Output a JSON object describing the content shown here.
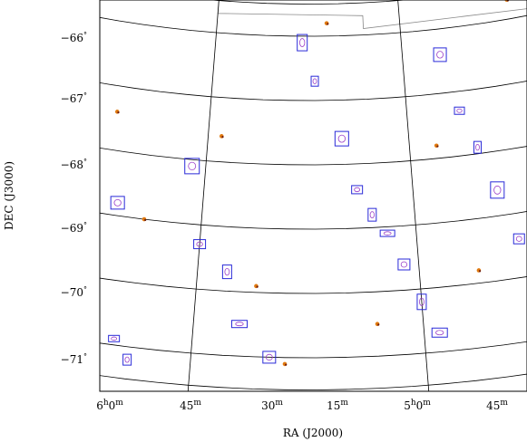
{
  "chart_data": {
    "type": "scatter",
    "title": "",
    "xlabel": "RA (J2000)",
    "ylabel": "DEC (J3000)",
    "x_ticks": [
      {
        "h": "6",
        "m": "0",
        "value": "6h0m"
      },
      {
        "h": "",
        "m": "45",
        "value": "5h45m"
      },
      {
        "h": "",
        "m": "30",
        "value": "5h30m"
      },
      {
        "h": "",
        "m": "15",
        "value": "5h15m"
      },
      {
        "h": "5",
        "m": "0",
        "value": "5h0m"
      },
      {
        "h": "",
        "m": "45",
        "value": "4h45m"
      }
    ],
    "y_ticks": [
      "−66",
      "−67",
      "−68",
      "−69",
      "−70",
      "−71"
    ],
    "y_tick_values": [
      -66,
      -67,
      -68,
      -69,
      -70,
      -71
    ],
    "xlim_ra_minutes": [
      362,
      283
    ],
    "ylim_dec": [
      -71.55,
      -65.6
    ],
    "grid": true,
    "projection": "curved RA/Dec grid",
    "series": [
      {
        "name": "",
        "marker": "contour boxes",
        "color": "#2a2ad8",
        "values": [
          [
            356,
            -68.2
          ],
          [
            349,
            -68.7
          ],
          [
            347,
            -68.0
          ],
          [
            346,
            -69.2
          ],
          [
            345,
            -69.7
          ],
          [
            344,
            -70.1
          ],
          [
            343,
            -69.4
          ],
          [
            342,
            -68.9
          ],
          [
            340,
            -70.3
          ],
          [
            339,
            -70.8
          ],
          [
            338,
            -69.9
          ],
          [
            336,
            -68.8
          ],
          [
            335,
            -70.9
          ],
          [
            334,
            -71.2
          ],
          [
            331,
            -68.1
          ],
          [
            330,
            -69.3
          ],
          [
            328,
            -69.7
          ],
          [
            327,
            -70.5
          ],
          [
            325,
            -71.0
          ],
          [
            323,
            -66.1
          ],
          [
            322,
            -66.7
          ],
          [
            320,
            -67.6
          ],
          [
            319,
            -68.4
          ],
          [
            318,
            -68.8
          ],
          [
            317,
            -69.1
          ],
          [
            316,
            -69.6
          ],
          [
            315,
            -70.2
          ],
          [
            314,
            -70.7
          ],
          [
            312,
            -66.4
          ],
          [
            311,
            -67.3
          ],
          [
            310,
            -67.9
          ],
          [
            309,
            -68.6
          ],
          [
            308,
            -69.4
          ],
          [
            307,
            -70.0
          ],
          [
            305,
            -70.6
          ],
          [
            303,
            -66.7
          ],
          [
            302,
            -67.5
          ],
          [
            301,
            -68.2
          ],
          [
            300,
            -68.9
          ],
          [
            299,
            -69.3
          ],
          [
            297,
            -70.1
          ],
          [
            296,
            -70.9
          ],
          [
            294,
            -66.0
          ],
          [
            293,
            -66.6
          ],
          [
            292,
            -67.6
          ],
          [
            291,
            -68.3
          ],
          [
            290,
            -69.0
          ],
          [
            289,
            -69.5
          ],
          [
            287,
            -68.0
          ],
          [
            286,
            -67.2
          ],
          [
            285,
            -69.1
          ],
          [
            284,
            -68.7
          ]
        ]
      },
      {
        "name": "",
        "marker": "filled dots",
        "color": "#e07a10",
        "values": [
          [
            352,
            -67.8
          ],
          [
            341,
            -68.6
          ],
          [
            337,
            -67.4
          ],
          [
            334,
            -69.0
          ],
          [
            329,
            -67.6
          ],
          [
            326,
            -69.9
          ],
          [
            324,
            -71.1
          ],
          [
            321,
            -65.8
          ],
          [
            318,
            -70.5
          ],
          [
            313,
            -67.8
          ],
          [
            311,
            -69.8
          ],
          [
            306,
            -65.7
          ],
          [
            304,
            -69.6
          ],
          [
            300,
            -70.3
          ],
          [
            298,
            -67.0
          ],
          [
            295,
            -68.0
          ],
          [
            293,
            -69.9
          ],
          [
            290,
            -66.7
          ],
          [
            288,
            -68.3
          ],
          [
            286,
            -70.0
          ]
        ]
      }
    ]
  }
}
